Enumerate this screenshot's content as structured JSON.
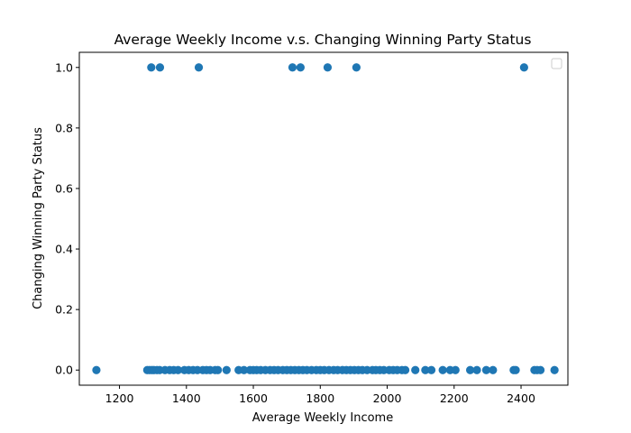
{
  "chart_data": {
    "type": "scatter",
    "title": "Average Weekly Income v.s. Changing Winning Party Status",
    "xlabel": "Average Weekly Income",
    "ylabel": "Changing Winning Party Status",
    "xlim": [
      1080,
      2540
    ],
    "ylim": [
      -0.05,
      1.05
    ],
    "x_ticks": [
      1200,
      1400,
      1600,
      1800,
      2000,
      2200,
      2400
    ],
    "x_tick_labels": [
      "1200",
      "1400",
      "1600",
      "1800",
      "2000",
      "2200",
      "2400"
    ],
    "y_ticks": [
      0.0,
      0.2,
      0.4,
      0.6,
      0.8,
      1.0
    ],
    "y_tick_labels": [
      "0.0",
      "0.2",
      "0.4",
      "0.6",
      "0.8",
      "1.0"
    ],
    "grid": false,
    "legend": {
      "placement": "top-right",
      "entries": []
    },
    "marker_color": "#1f77b4",
    "series": [
      {
        "points": [
          {
            "x": 1295,
            "y": 1
          },
          {
            "x": 1321,
            "y": 1
          },
          {
            "x": 1437,
            "y": 1
          },
          {
            "x": 1717,
            "y": 1
          },
          {
            "x": 1741,
            "y": 1
          },
          {
            "x": 1822,
            "y": 1
          },
          {
            "x": 1908,
            "y": 1
          },
          {
            "x": 2409,
            "y": 1
          },
          {
            "x": 1131,
            "y": 0
          },
          {
            "x": 1283,
            "y": 0
          },
          {
            "x": 1290,
            "y": 0
          },
          {
            "x": 1297,
            "y": 0
          },
          {
            "x": 1303,
            "y": 0
          },
          {
            "x": 1312,
            "y": 0
          },
          {
            "x": 1320,
            "y": 0
          },
          {
            "x": 1336,
            "y": 0
          },
          {
            "x": 1350,
            "y": 0
          },
          {
            "x": 1362,
            "y": 0
          },
          {
            "x": 1375,
            "y": 0
          },
          {
            "x": 1394,
            "y": 0
          },
          {
            "x": 1407,
            "y": 0
          },
          {
            "x": 1420,
            "y": 0
          },
          {
            "x": 1433,
            "y": 0
          },
          {
            "x": 1449,
            "y": 0
          },
          {
            "x": 1460,
            "y": 0
          },
          {
            "x": 1471,
            "y": 0
          },
          {
            "x": 1486,
            "y": 0
          },
          {
            "x": 1494,
            "y": 0
          },
          {
            "x": 1520,
            "y": 0
          },
          {
            "x": 1556,
            "y": 0
          },
          {
            "x": 1572,
            "y": 0
          },
          {
            "x": 1590,
            "y": 0
          },
          {
            "x": 1600,
            "y": 0
          },
          {
            "x": 1610,
            "y": 0
          },
          {
            "x": 1622,
            "y": 0
          },
          {
            "x": 1636,
            "y": 0
          },
          {
            "x": 1650,
            "y": 0
          },
          {
            "x": 1662,
            "y": 0
          },
          {
            "x": 1674,
            "y": 0
          },
          {
            "x": 1688,
            "y": 0
          },
          {
            "x": 1700,
            "y": 0
          },
          {
            "x": 1712,
            "y": 0
          },
          {
            "x": 1724,
            "y": 0
          },
          {
            "x": 1736,
            "y": 0
          },
          {
            "x": 1748,
            "y": 0
          },
          {
            "x": 1760,
            "y": 0
          },
          {
            "x": 1774,
            "y": 0
          },
          {
            "x": 1788,
            "y": 0
          },
          {
            "x": 1800,
            "y": 0
          },
          {
            "x": 1812,
            "y": 0
          },
          {
            "x": 1826,
            "y": 0
          },
          {
            "x": 1840,
            "y": 0
          },
          {
            "x": 1852,
            "y": 0
          },
          {
            "x": 1866,
            "y": 0
          },
          {
            "x": 1878,
            "y": 0
          },
          {
            "x": 1890,
            "y": 0
          },
          {
            "x": 1902,
            "y": 0
          },
          {
            "x": 1914,
            "y": 0
          },
          {
            "x": 1926,
            "y": 0
          },
          {
            "x": 1940,
            "y": 0
          },
          {
            "x": 1956,
            "y": 0
          },
          {
            "x": 1966,
            "y": 0
          },
          {
            "x": 1978,
            "y": 0
          },
          {
            "x": 1990,
            "y": 0
          },
          {
            "x": 2006,
            "y": 0
          },
          {
            "x": 2018,
            "y": 0
          },
          {
            "x": 2030,
            "y": 0
          },
          {
            "x": 2044,
            "y": 0
          },
          {
            "x": 2054,
            "y": 0
          },
          {
            "x": 2084,
            "y": 0
          },
          {
            "x": 2114,
            "y": 0
          },
          {
            "x": 2132,
            "y": 0
          },
          {
            "x": 2166,
            "y": 0
          },
          {
            "x": 2188,
            "y": 0
          },
          {
            "x": 2204,
            "y": 0
          },
          {
            "x": 2248,
            "y": 0
          },
          {
            "x": 2268,
            "y": 0
          },
          {
            "x": 2296,
            "y": 0
          },
          {
            "x": 2316,
            "y": 0
          },
          {
            "x": 2378,
            "y": 0
          },
          {
            "x": 2384,
            "y": 0
          },
          {
            "x": 2440,
            "y": 0
          },
          {
            "x": 2448,
            "y": 0
          },
          {
            "x": 2458,
            "y": 0
          },
          {
            "x": 2500,
            "y": 0
          }
        ]
      }
    ]
  }
}
